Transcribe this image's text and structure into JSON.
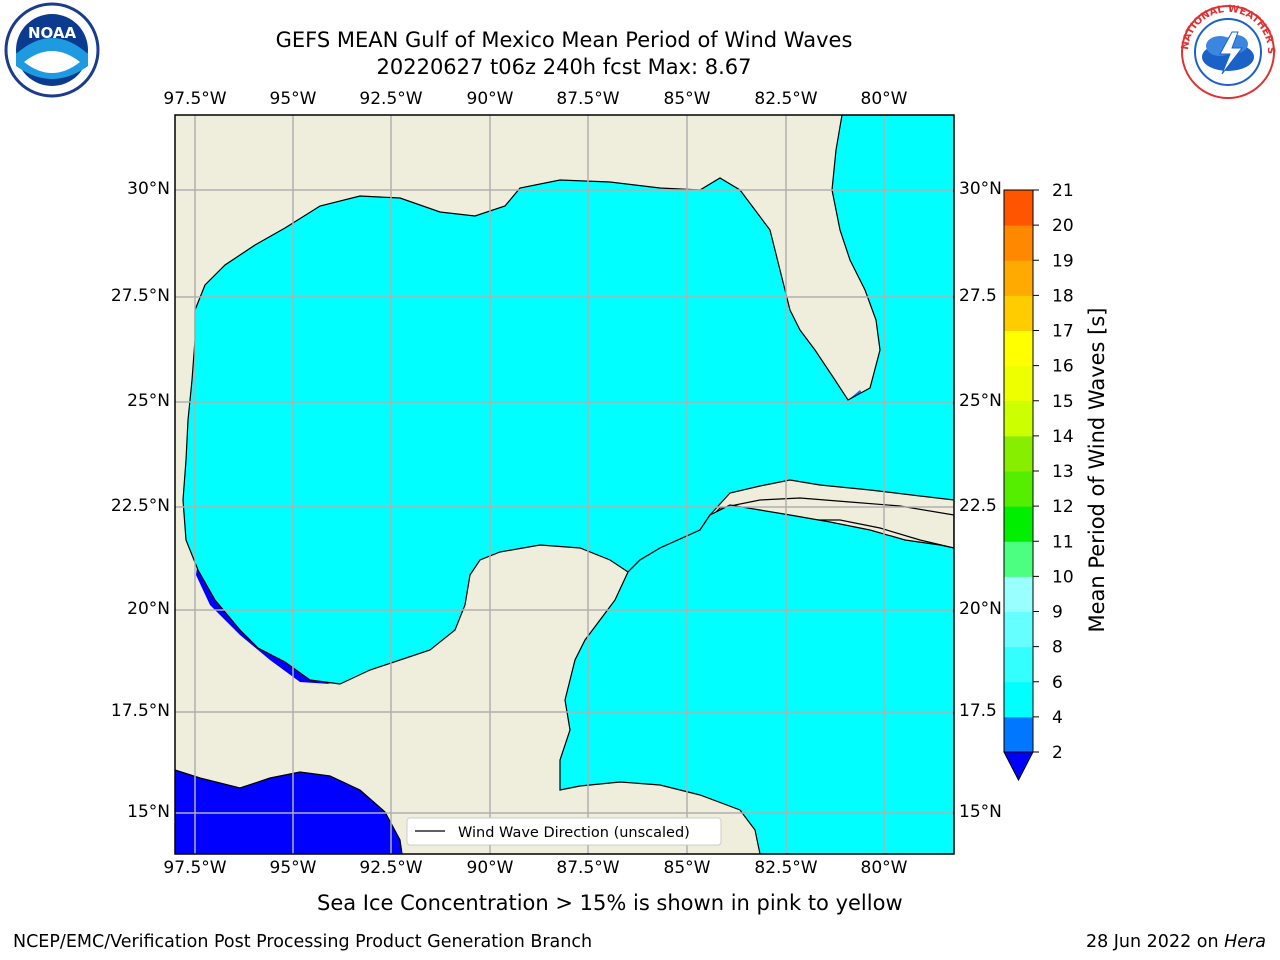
{
  "header": {
    "title_line1": "GEFS MEAN Gulf of Mexico Mean Period of Wind Waves",
    "title_line2": "20220627 t06z 240h fcst   Max: 8.67"
  },
  "logos": {
    "left": {
      "icon": "noaa-logo-icon",
      "text": "NOAA"
    },
    "right": {
      "icon": "nws-logo-icon",
      "text": "NATIONAL WEATHER SERVICE"
    }
  },
  "axes": {
    "lon_ticks": [
      "97.5°W",
      "95°W",
      "92.5°W",
      "90°W",
      "87.5°W",
      "85°W",
      "82.5°W",
      "80°W"
    ],
    "lat_ticks": [
      "30°N",
      "27.5°N",
      "25°N",
      "22.5°N",
      "20°N",
      "17.5°N",
      "15°N"
    ],
    "right_lat_ticks": [
      "30°N",
      "27.5",
      "25°N",
      "22.5",
      "20°N",
      "17.5",
      "15°N"
    ]
  },
  "legend": {
    "label": "Wind Wave Direction (unscaled)"
  },
  "colorbar": {
    "label": "Mean Period of Wind Waves [s]",
    "ticks": [
      "2",
      "4",
      "6",
      "8",
      "9",
      "10",
      "11",
      "12",
      "13",
      "14",
      "15",
      "16",
      "17",
      "18",
      "19",
      "20",
      "21"
    ],
    "colors": [
      "#0077ff",
      "#00ffff",
      "#33ffff",
      "#66ffff",
      "#99ffff",
      "#4cff80",
      "#00ee00",
      "#55ee00",
      "#88ee00",
      "#ccff00",
      "#eeff00",
      "#ffff00",
      "#ffcc00",
      "#ffaa00",
      "#ff8800",
      "#ff5500",
      "#ff2200",
      "#ff0000"
    ],
    "under_color": "#0000ff"
  },
  "map_colors": {
    "land": "#efeddc",
    "ocean_mid": "#00ffff",
    "ocean_low": "#0077ff",
    "ocean_lowest": "#0000ff",
    "ocean_light": "#66ffff",
    "arrow": "#ff0000",
    "grid": "#b0b0b0"
  },
  "note": "Sea Ice Concentration > 15% is shown in pink to yellow",
  "footer": {
    "left": "NCEP/EMC/Verification Post Processing Product Generation Branch",
    "right_date": "28 Jun 2022 on ",
    "right_host": "Hera"
  }
}
